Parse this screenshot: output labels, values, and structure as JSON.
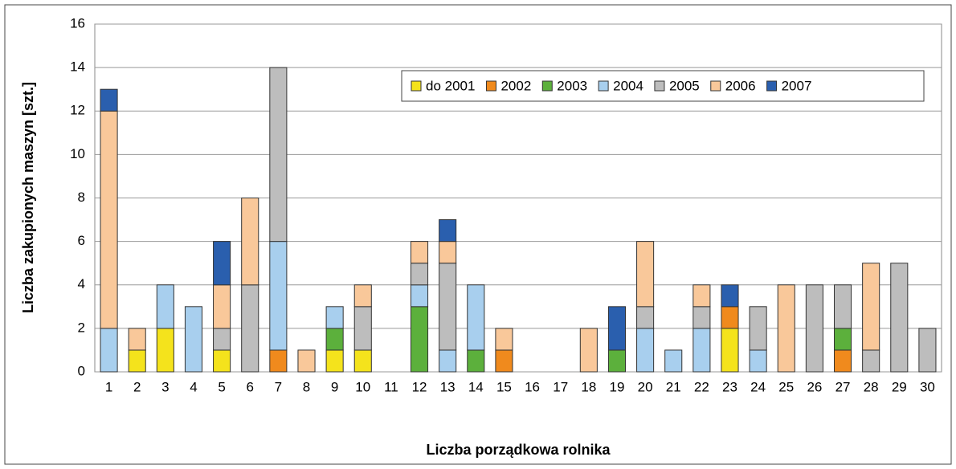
{
  "chart_data": {
    "type": "stacked_bar",
    "y_label": "Liczba zakupionych maszyn [szt.]",
    "x_label": "Liczba porządkowa rolnika",
    "categories": [
      "1",
      "2",
      "3",
      "4",
      "5",
      "6",
      "7",
      "8",
      "9",
      "10",
      "11",
      "12",
      "13",
      "14",
      "15",
      "16",
      "17",
      "18",
      "19",
      "20",
      "21",
      "22",
      "23",
      "24",
      "25",
      "26",
      "27",
      "28",
      "29",
      "30"
    ],
    "ylim": [
      0,
      16
    ],
    "yticks": [
      0,
      2,
      4,
      6,
      8,
      10,
      12,
      14,
      16
    ],
    "grid": true,
    "legend": "top-right",
    "series": [
      {
        "name": "do 2001",
        "color": "#f4e31c",
        "values": [
          0,
          1,
          2,
          0,
          1,
          0,
          0,
          0,
          1,
          1,
          0,
          0,
          0,
          0,
          0,
          0,
          0,
          0,
          0,
          0,
          0,
          0,
          2,
          0,
          0,
          0,
          0,
          0,
          0,
          0
        ]
      },
      {
        "name": "2002",
        "color": "#f08a1d",
        "values": [
          0,
          0,
          0,
          0,
          0,
          0,
          1,
          0,
          0,
          0,
          0,
          0,
          0,
          0,
          1,
          0,
          0,
          0,
          0,
          0,
          0,
          0,
          1,
          0,
          0,
          0,
          1,
          0,
          0,
          0
        ]
      },
      {
        "name": "2003",
        "color": "#5cb03c",
        "values": [
          0,
          0,
          0,
          0,
          0,
          0,
          0,
          0,
          1,
          0,
          0,
          3,
          0,
          1,
          0,
          0,
          0,
          0,
          1,
          0,
          0,
          0,
          0,
          0,
          0,
          0,
          1,
          0,
          0,
          0
        ]
      },
      {
        "name": "2004",
        "color": "#a8cfee",
        "values": [
          2,
          0,
          2,
          3,
          0,
          0,
          5,
          0,
          1,
          0,
          0,
          1,
          1,
          3,
          0,
          0,
          0,
          0,
          0,
          2,
          1,
          2,
          0,
          1,
          0,
          0,
          0,
          0,
          0,
          0
        ]
      },
      {
        "name": "2005",
        "color": "#bdbdbd",
        "values": [
          0,
          0,
          0,
          0,
          1,
          4,
          8,
          0,
          0,
          2,
          0,
          1,
          4,
          0,
          0,
          0,
          0,
          0,
          0,
          1,
          0,
          1,
          0,
          2,
          0,
          4,
          2,
          1,
          5,
          2
        ]
      },
      {
        "name": "2006",
        "color": "#f9c89a",
        "values": [
          10,
          1,
          0,
          0,
          2,
          4,
          0,
          1,
          0,
          1,
          0,
          1,
          1,
          0,
          1,
          0,
          0,
          2,
          0,
          3,
          0,
          1,
          0,
          0,
          4,
          0,
          0,
          4,
          0,
          0
        ]
      },
      {
        "name": "2007",
        "color": "#2a5fae",
        "values": [
          1,
          0,
          0,
          0,
          2,
          0,
          0,
          0,
          0,
          0,
          0,
          0,
          1,
          0,
          0,
          0,
          0,
          0,
          2,
          0,
          0,
          0,
          1,
          0,
          0,
          0,
          0,
          0,
          0,
          0
        ]
      }
    ]
  }
}
